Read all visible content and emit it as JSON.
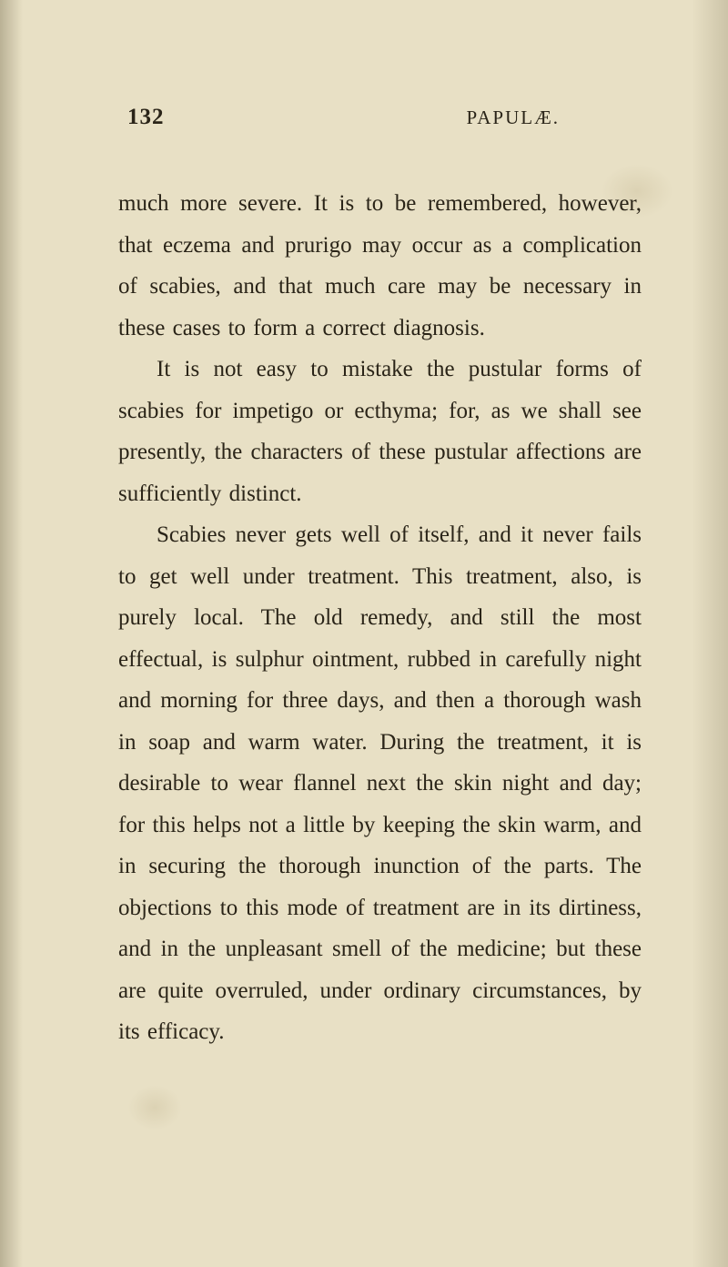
{
  "page": {
    "number": "132",
    "running_head": "PAPULÆ.",
    "background_color": "#e8e0c5",
    "text_color": "#2a2418",
    "font_family": "Georgia, Times New Roman, serif",
    "body_fontsize": 25,
    "line_height": 1.82,
    "header_fontsize_number": 25,
    "header_fontsize_head": 21
  },
  "paragraphs": [
    "much more severe. It is to be remembered, however, that eczema and prurigo may occur as a complication of scabies, and that much care may be necessary in these cases to form a correct diagnosis.",
    "It is not easy to mistake the pustular forms of scabies for impetigo or ecthyma; for, as we shall see presently, the characters of these pustular affections are sufficiently distinct.",
    "Scabies never gets well of itself, and it never fails to get well under treatment. This treatment, also, is purely local. The old remedy, and still the most effectual, is sulphur ointment, rubbed in carefully night and morning for three days, and then a thorough wash in soap and warm water. During the treatment, it is desirable to wear flannel next the skin night and day; for this helps not a little by keeping the skin warm, and in securing the thorough inunction of the parts. The objections to this mode of treatment are in its dirtiness, and in the unpleasant smell of the medicine; but these are quite overruled, under ordinary circumstances, by its efficacy."
  ]
}
